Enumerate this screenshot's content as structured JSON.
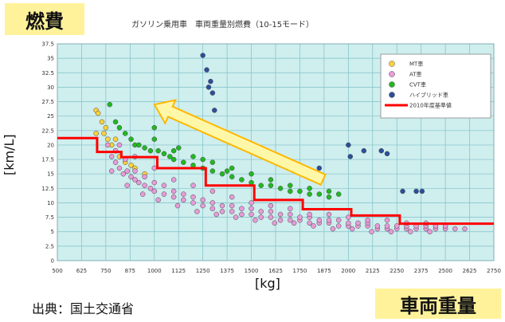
{
  "badges": {
    "top": "燃費",
    "bottom": "車両重量"
  },
  "source": "出典：国土交通省",
  "colors": {
    "plot_bg": "#cfeeee",
    "grid": "#7fc1c8",
    "mt": "#ffd23a",
    "at": "#e79bd8",
    "cvt": "#22b822",
    "hybrid": "#2c4f9b",
    "standard": "#ff0000",
    "arrow_fill": "#fff7a8",
    "arrow_stroke": "#ffb800",
    "badge_bg": "#fff29a"
  },
  "chart_data": {
    "type": "scatter",
    "title": "ガソリン乗用車　車両重量別燃費（10-15モード）",
    "xlabel": "[kg]",
    "ylabel": "[km/L]",
    "xlim": [
      500,
      2750
    ],
    "ylim": [
      0,
      37.5
    ],
    "xticks": [
      500,
      625,
      750,
      875,
      1000,
      1125,
      1250,
      1375,
      1500,
      1625,
      1750,
      1875,
      2000,
      2125,
      2250,
      2375,
      2500,
      2625,
      2750
    ],
    "yticks": [
      0,
      2.5,
      5,
      7.5,
      10,
      12.5,
      15,
      17.5,
      20,
      22.5,
      25,
      27.5,
      30,
      32.5,
      35,
      37.5
    ],
    "grid": true,
    "legend_position": "top-right",
    "series": [
      {
        "name": "MT車",
        "color": "#ffd23a",
        "points": [
          [
            700,
            26
          ],
          [
            710,
            25.5
          ],
          [
            730,
            24
          ],
          [
            740,
            22
          ],
          [
            760,
            21
          ],
          [
            780,
            20
          ],
          [
            800,
            19
          ],
          [
            820,
            18
          ],
          [
            850,
            17
          ],
          [
            880,
            16.5
          ],
          [
            900,
            16
          ],
          [
            950,
            15
          ],
          [
            700,
            22
          ],
          [
            750,
            23
          ],
          [
            800,
            21
          ]
        ]
      },
      {
        "name": "AT車",
        "color": "#e79bd8",
        "points": [
          [
            760,
            20
          ],
          [
            780,
            18
          ],
          [
            800,
            17
          ],
          [
            820,
            16
          ],
          [
            840,
            15
          ],
          [
            860,
            15.5
          ],
          [
            880,
            14.5
          ],
          [
            900,
            14
          ],
          [
            920,
            13.5
          ],
          [
            950,
            13
          ],
          [
            980,
            12.5
          ],
          [
            1000,
            12
          ],
          [
            1050,
            11.5
          ],
          [
            1100,
            11
          ],
          [
            1150,
            10.5
          ],
          [
            1200,
            10
          ],
          [
            1250,
            9.5
          ],
          [
            1300,
            9
          ],
          [
            1350,
            8.5
          ],
          [
            1400,
            8.5
          ],
          [
            1450,
            8
          ],
          [
            1500,
            8
          ],
          [
            1550,
            7.5
          ],
          [
            1600,
            7.5
          ],
          [
            1650,
            7
          ],
          [
            1700,
            7
          ],
          [
            1750,
            7
          ],
          [
            1800,
            6.5
          ],
          [
            1850,
            6.5
          ],
          [
            1900,
            6.5
          ],
          [
            1950,
            6
          ],
          [
            2000,
            6
          ],
          [
            2050,
            6
          ],
          [
            2100,
            6
          ],
          [
            2150,
            5.5
          ],
          [
            2200,
            5.5
          ],
          [
            2250,
            5.5
          ],
          [
            2300,
            5.5
          ],
          [
            2350,
            5.5
          ],
          [
            2400,
            5.5
          ],
          [
            2450,
            5.5
          ],
          [
            2500,
            5.5
          ],
          [
            2550,
            5.5
          ],
          [
            2600,
            5.5
          ],
          [
            800,
            19
          ],
          [
            850,
            17.5
          ],
          [
            900,
            15.5
          ],
          [
            950,
            14.5
          ],
          [
            1000,
            13.5
          ],
          [
            1050,
            13
          ],
          [
            1100,
            12
          ],
          [
            1150,
            11.5
          ],
          [
            1200,
            11
          ],
          [
            1250,
            10.5
          ],
          [
            1300,
            10
          ],
          [
            1350,
            9.5
          ],
          [
            1400,
            9.5
          ],
          [
            1450,
            9
          ],
          [
            1500,
            9
          ],
          [
            1550,
            8.5
          ],
          [
            1600,
            8.5
          ],
          [
            1650,
            8
          ],
          [
            1700,
            8
          ],
          [
            1750,
            7.5
          ],
          [
            1800,
            7.5
          ],
          [
            1850,
            7
          ],
          [
            1900,
            7
          ],
          [
            1950,
            7
          ],
          [
            2000,
            6.5
          ],
          [
            2050,
            6.5
          ],
          [
            2100,
            6.5
          ],
          [
            2150,
            6
          ],
          [
            2200,
            6
          ],
          [
            2250,
            6
          ],
          [
            2300,
            6
          ],
          [
            2350,
            6
          ],
          [
            2400,
            6
          ],
          [
            2450,
            6
          ],
          [
            820,
            20
          ],
          [
            900,
            18
          ],
          [
            1000,
            16
          ],
          [
            1100,
            14
          ],
          [
            1200,
            13
          ],
          [
            1300,
            12
          ],
          [
            1400,
            11
          ],
          [
            1500,
            10
          ],
          [
            1600,
            9.5
          ],
          [
            1700,
            9
          ],
          [
            1800,
            8
          ],
          [
            1900,
            8
          ],
          [
            2000,
            7.5
          ],
          [
            2100,
            7
          ],
          [
            2200,
            7
          ],
          [
            2300,
            6.5
          ],
          [
            2400,
            6.5
          ],
          [
            2500,
            6
          ],
          [
            780,
            15.5
          ],
          [
            860,
            13
          ],
          [
            940,
            11.5
          ],
          [
            1020,
            10.5
          ],
          [
            1120,
            9.5
          ],
          [
            1220,
            8.5
          ],
          [
            1320,
            8
          ],
          [
            1420,
            7.5
          ],
          [
            1520,
            7
          ],
          [
            1620,
            6.5
          ],
          [
            1720,
            6.5
          ],
          [
            1820,
            6
          ],
          [
            1920,
            5.5
          ],
          [
            2020,
            5.5
          ],
          [
            2120,
            5
          ],
          [
            2220,
            5
          ],
          [
            2320,
            5
          ],
          [
            2420,
            5
          ]
        ]
      },
      {
        "name": "CVT車",
        "color": "#22b822",
        "points": [
          [
            770,
            27
          ],
          [
            800,
            24
          ],
          [
            820,
            23
          ],
          [
            850,
            22
          ],
          [
            880,
            21
          ],
          [
            900,
            20
          ],
          [
            920,
            20
          ],
          [
            950,
            19.5
          ],
          [
            980,
            19
          ],
          [
            1000,
            23
          ],
          [
            1020,
            19
          ],
          [
            1050,
            18.5
          ],
          [
            1080,
            18
          ],
          [
            1100,
            17.5
          ],
          [
            1150,
            17
          ],
          [
            1200,
            16.5
          ],
          [
            1250,
            16
          ],
          [
            1300,
            15.5
          ],
          [
            1350,
            15
          ],
          [
            1400,
            14.5
          ],
          [
            1450,
            14
          ],
          [
            1500,
            13.5
          ],
          [
            1550,
            13
          ],
          [
            1600,
            13
          ],
          [
            1650,
            12.5
          ],
          [
            1700,
            12
          ],
          [
            1750,
            12
          ],
          [
            1800,
            11.5
          ],
          [
            1850,
            11.5
          ],
          [
            1900,
            11
          ],
          [
            1950,
            11.5
          ],
          [
            1000,
            21
          ],
          [
            1100,
            19
          ],
          [
            1200,
            18
          ],
          [
            1300,
            17
          ],
          [
            1400,
            16
          ],
          [
            1500,
            15
          ],
          [
            1600,
            14
          ],
          [
            1700,
            13
          ],
          [
            1800,
            12.5
          ],
          [
            1900,
            12
          ],
          [
            1125,
            19.5
          ],
          [
            1250,
            17.5
          ],
          [
            1375,
            15.5
          ]
        ]
      },
      {
        "name": "ハイブリッド車",
        "color": "#2c4f9b",
        "points": [
          [
            1250,
            35.5
          ],
          [
            1270,
            33
          ],
          [
            1290,
            31
          ],
          [
            1300,
            29
          ],
          [
            1310,
            26
          ],
          [
            1280,
            30
          ],
          [
            1850,
            16
          ],
          [
            2000,
            20
          ],
          [
            2010,
            18
          ],
          [
            2080,
            19
          ],
          [
            2170,
            19
          ],
          [
            2200,
            18.5
          ],
          [
            2280,
            12
          ],
          [
            2350,
            12
          ],
          [
            2380,
            12
          ]
        ]
      }
    ],
    "standard_line": {
      "name": "2010年度基準値",
      "color": "#ff0000",
      "steps": [
        [
          500,
          21.2
        ],
        [
          705,
          21.2
        ],
        [
          705,
          18.8
        ],
        [
          830,
          18.8
        ],
        [
          830,
          17.9
        ],
        [
          1015,
          17.9
        ],
        [
          1015,
          16
        ],
        [
          1265,
          16
        ],
        [
          1265,
          13
        ],
        [
          1515,
          13
        ],
        [
          1515,
          10.5
        ],
        [
          1765,
          10.5
        ],
        [
          1765,
          8.9
        ],
        [
          2015,
          8.9
        ],
        [
          2015,
          7.8
        ],
        [
          2265,
          7.8
        ],
        [
          2265,
          6.4
        ],
        [
          2750,
          6.4
        ]
      ]
    },
    "annotation": {
      "type": "arrow",
      "from": [
        1870,
        14
      ],
      "to": [
        1000,
        27
      ]
    }
  }
}
